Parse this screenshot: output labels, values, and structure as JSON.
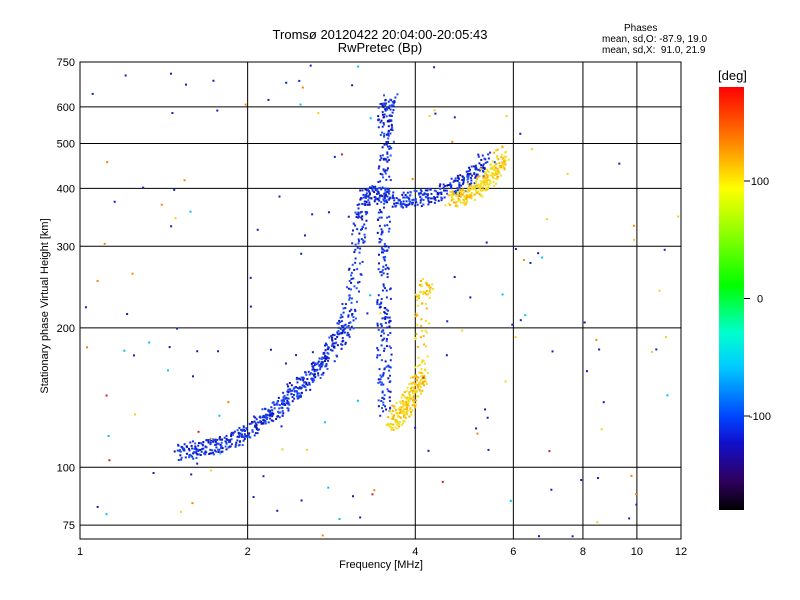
{
  "title": "Tromsø 20120422 20:04:00-20:05:43",
  "subtitle": "RwPretec (Bp)",
  "phases": {
    "title": "Phases",
    "line_o": "mean, sd,O: -87.9, 19.0",
    "line_x": "mean, sd,X:  91.0, 21.9"
  },
  "colorbar": {
    "unit": "[deg]",
    "ticks": [
      {
        "label": "100",
        "value": 100
      },
      {
        "label": "0",
        "value": 0
      },
      {
        "label": "-100",
        "value": -100
      }
    ]
  },
  "chart_data": {
    "type": "scatter",
    "xlabel": "Frequency [MHz]",
    "ylabel": "Stationary phase Virtual Height [km]",
    "xscale": "log",
    "yscale": "log",
    "xlim": [
      1,
      12
    ],
    "ylim": [
      70,
      750
    ],
    "grid": true,
    "xticks": [
      1,
      2,
      4,
      6,
      8,
      10,
      12
    ],
    "yticks": [
      75,
      100,
      200,
      300,
      400,
      500,
      600,
      750
    ],
    "color_scale": "phase in degrees (-180 to 180)",
    "traces": [
      {
        "name": "O-mode lower F-trace (blue)",
        "approx_phase_deg": -95,
        "points": [
          [
            1.5,
            108
          ],
          [
            1.6,
            110
          ],
          [
            1.7,
            111
          ],
          [
            1.8,
            113
          ],
          [
            1.9,
            116
          ],
          [
            2.0,
            120
          ],
          [
            2.1,
            126
          ],
          [
            2.2,
            132
          ],
          [
            2.3,
            137
          ],
          [
            2.4,
            145
          ],
          [
            2.5,
            152
          ],
          [
            2.6,
            160
          ],
          [
            2.7,
            168
          ],
          [
            2.8,
            178
          ],
          [
            2.9,
            190
          ],
          [
            3.0,
            205
          ],
          [
            3.1,
            250
          ],
          [
            3.15,
            320
          ],
          [
            3.2,
            380
          ],
          [
            3.3,
            395
          ],
          [
            3.5,
            385
          ],
          [
            3.7,
            380
          ],
          [
            3.9,
            382
          ],
          [
            4.2,
            385
          ],
          [
            4.5,
            395
          ],
          [
            4.8,
            410
          ],
          [
            5.1,
            435
          ],
          [
            5.4,
            470
          ]
        ]
      },
      {
        "name": "O-mode vertical band near 3.5 MHz (blue)",
        "approx_phase_deg": -100,
        "points": [
          [
            3.5,
            130
          ],
          [
            3.5,
            160
          ],
          [
            3.5,
            200
          ],
          [
            3.5,
            260
          ],
          [
            3.5,
            320
          ],
          [
            3.5,
            420
          ],
          [
            3.55,
            500
          ],
          [
            3.5,
            580
          ],
          [
            3.6,
            620
          ]
        ]
      },
      {
        "name": "X-mode upper trace (yellow)",
        "approx_phase_deg": 95,
        "points": [
          [
            4.6,
            380
          ],
          [
            4.8,
            385
          ],
          [
            5.0,
            395
          ],
          [
            5.2,
            405
          ],
          [
            5.4,
            420
          ],
          [
            5.6,
            445
          ],
          [
            5.7,
            480
          ]
        ]
      },
      {
        "name": "X-mode lower trace (yellow)",
        "approx_phase_deg": 90,
        "points": [
          [
            3.6,
            125
          ],
          [
            3.7,
            130
          ],
          [
            3.8,
            135
          ],
          [
            3.9,
            140
          ],
          [
            4.0,
            150
          ],
          [
            4.1,
            160
          ],
          [
            4.1,
            230
          ],
          [
            4.2,
            250
          ]
        ]
      }
    ]
  }
}
